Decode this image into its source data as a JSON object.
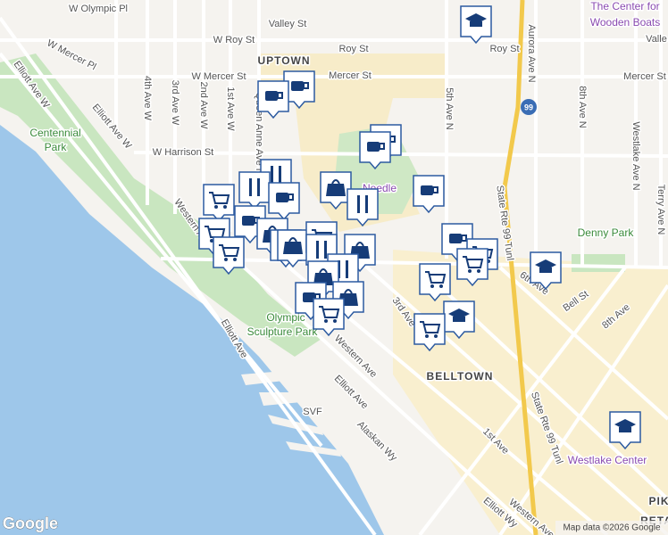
{
  "labels": [
    "W Olympic Pl",
    "Valley St",
    "The Center for",
    "Wooden Boats",
    "W Roy St",
    "Roy St",
    "Roy St",
    "Valle",
    "UPTOWN",
    "W Mercer Pl",
    "W Mercer St",
    "Mercer St",
    "Mercer St",
    "Elliott Ave W",
    "Elliott Ave W",
    "4th Ave W",
    "3rd Ave W",
    "2nd Ave W",
    "1st Ave W",
    "Queen Anne Ave N",
    "Centennial",
    "Park",
    "W Harrison St",
    "5th Ave N",
    "Aurora Ave N",
    "Westlake Ave N",
    "8th Ave N",
    "Terry Ave N",
    "State Rte 99 Tunl",
    "Denny Park",
    "Needle",
    "Western Ave",
    "Elliott Ave",
    "Olympic",
    "Sculpture Park",
    "3rd Ave",
    "6th Ave",
    "Bell St",
    "8th Ave",
    "BELLTOWN",
    "Western Ave",
    "Elliott Ave",
    "SVF",
    "Alaskan Wy",
    "1st Ave",
    "State Rte 99 Tunl",
    "Westlake Center",
    "Elliott Wy",
    "Western Ave",
    "PIK",
    "RETA",
    "99"
  ],
  "footer": {
    "logo": "Google",
    "attribution": "Map data ©2026 Google"
  }
}
